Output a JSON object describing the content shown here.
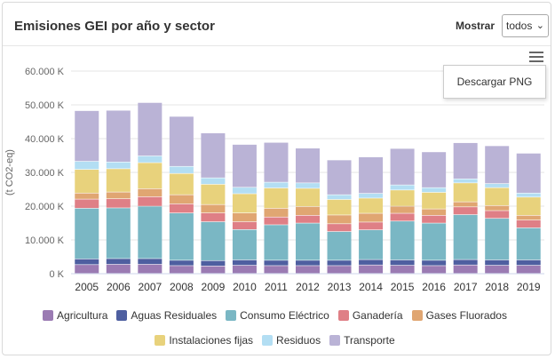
{
  "header": {
    "title": "Emisiones GEI por año y sector",
    "show_label": "Mostrar",
    "select_value": "todos"
  },
  "menu": {
    "download_png": "Descargar PNG"
  },
  "chart_data": {
    "type": "bar",
    "stacked": true,
    "ylabel": "(t CO2-eq)",
    "ylim": [
      0,
      60000
    ],
    "yticks": [
      "0 K",
      "10.000 K",
      "20.000 K",
      "30.000 K",
      "40.000 K",
      "50.000 K",
      "60.000 K"
    ],
    "grid": true,
    "legend_position": "bottom",
    "categories": [
      "2005",
      "2006",
      "2007",
      "2008",
      "2009",
      "2010",
      "2011",
      "2012",
      "2013",
      "2014",
      "2015",
      "2016",
      "2017",
      "2018",
      "2019"
    ],
    "series": [
      {
        "name": "Agricultura",
        "color": "#9b7bb3",
        "values": [
          2600,
          2700,
          2700,
          2300,
          2200,
          2400,
          2300,
          2300,
          2300,
          2500,
          2400,
          2300,
          2500,
          2400,
          2400
        ]
      },
      {
        "name": "Aguas Residuales",
        "color": "#4e5fa0",
        "values": [
          1700,
          1700,
          1700,
          1600,
          1600,
          1600,
          1600,
          1600,
          1600,
          1600,
          1600,
          1600,
          1600,
          1600,
          1600
        ]
      },
      {
        "name": "Consumo Eléctrico",
        "color": "#7ab7c4",
        "values": [
          15000,
          15000,
          15500,
          14000,
          11500,
          9000,
          10500,
          11000,
          8500,
          8800,
          11500,
          11000,
          13300,
          12300,
          9500
        ]
      },
      {
        "name": "Ganadería",
        "color": "#df7f86",
        "values": [
          2700,
          2700,
          2800,
          2700,
          2600,
          2300,
          2300,
          2300,
          2300,
          2300,
          2300,
          2300,
          2300,
          2300,
          2300
        ]
      },
      {
        "name": "Gases Fluorados",
        "color": "#e0a672",
        "values": [
          1800,
          2000,
          2400,
          2700,
          2500,
          2600,
          2600,
          2600,
          2600,
          2600,
          2100,
          1900,
          1500,
          1500,
          1400
        ]
      },
      {
        "name": "Instalaciones fijas",
        "color": "#e8d27c",
        "values": [
          7000,
          6900,
          7700,
          6300,
          6000,
          5700,
          6000,
          5400,
          4600,
          4500,
          4800,
          4900,
          5600,
          5300,
          5400
        ]
      },
      {
        "name": "Residuos",
        "color": "#b3def3",
        "values": [
          2400,
          2000,
          2000,
          2100,
          1900,
          1900,
          1700,
          1600,
          1400,
          1400,
          1500,
          1400,
          1200,
          1200,
          1200
        ]
      },
      {
        "name": "Transporte",
        "color": "#bab3d6",
        "values": [
          15000,
          15300,
          15800,
          14800,
          13300,
          12700,
          11800,
          10300,
          10300,
          10800,
          10800,
          10600,
          10700,
          11200,
          11800
        ]
      }
    ]
  }
}
